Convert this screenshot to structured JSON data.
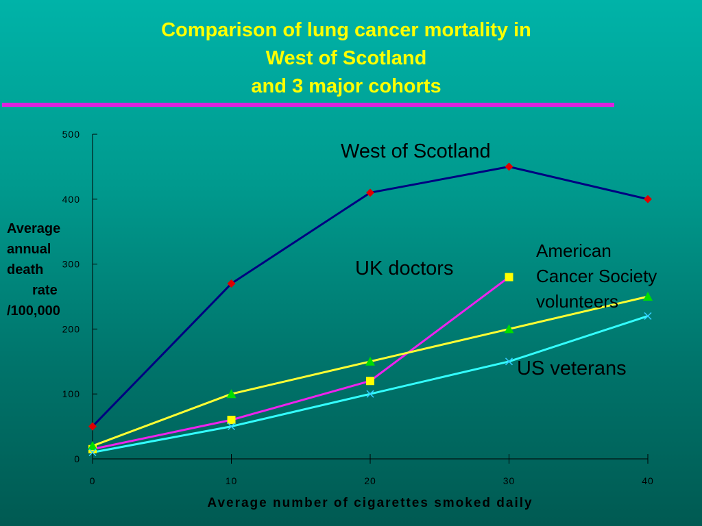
{
  "title_lines": [
    "Comparison of lung cancer mortality in",
    "West of Scotland",
    "and 3 major cohorts"
  ],
  "colors": {
    "title": "#ffff00",
    "rule": "#dd22dd",
    "axis": "#000000"
  },
  "chart_data": {
    "type": "line",
    "ylabel_lines": [
      "Average",
      "annual",
      "death",
      "rate",
      "/100,000"
    ],
    "xlabel": "Average number of cigarettes smoked daily",
    "xlim": [
      0,
      40
    ],
    "ylim": [
      0,
      500
    ],
    "xticks": [
      0,
      10,
      20,
      30,
      40
    ],
    "yticks": [
      0,
      100,
      200,
      300,
      400,
      500
    ],
    "grid": false,
    "series": [
      {
        "name": "West of Scotland",
        "color": "#000080",
        "marker": "diamond",
        "marker_color": "#e00000",
        "x": [
          0,
          10,
          20,
          30,
          40
        ],
        "y": [
          50,
          270,
          410,
          450,
          400
        ]
      },
      {
        "name": "UK doctors",
        "color": "#ee22ee",
        "marker": "square",
        "marker_color": "#ffff00",
        "x": [
          0,
          10,
          20,
          30
        ],
        "y": [
          15,
          60,
          120,
          280
        ]
      },
      {
        "name": "American Cancer Society volunteers",
        "color": "#ffff33",
        "marker": "triangle",
        "marker_color": "#00dd00",
        "x": [
          0,
          10,
          20,
          30,
          40
        ],
        "y": [
          20,
          100,
          150,
          200,
          250
        ]
      },
      {
        "name": "US veterans",
        "color": "#33ffff",
        "marker": "cross",
        "marker_color": "#33ccff",
        "x": [
          0,
          10,
          20,
          30,
          40
        ],
        "y": [
          10,
          50,
          100,
          150,
          220
        ]
      }
    ],
    "annotations": {
      "west": "West of Scotland",
      "uk": "UK doctors",
      "acs_lines": [
        "American",
        "Cancer Society",
        "volunteers"
      ],
      "us": "US veterans"
    }
  }
}
